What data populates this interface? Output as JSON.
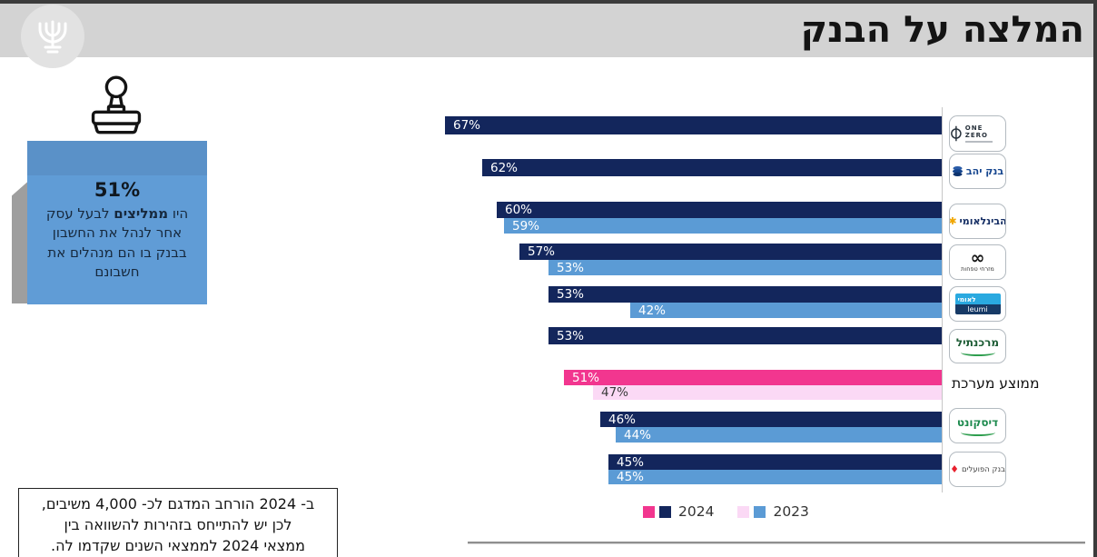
{
  "header": {
    "title": "המלצה על הבנק"
  },
  "logo": {
    "name": "Bank of Israel"
  },
  "sticky_note": {
    "headline": "51%",
    "text_prefix": "היו ",
    "text_bold": "ממליצים",
    "text_suffix": " לבעל עסק אחר לנהל את החשבון בבנק בו הם מנהלים את חשבונם"
  },
  "footnote": {
    "lines": [
      "ב- 2024 הורחב המדגם לכ- 4,000 משיבים,",
      "לכן יש להתייחס בזהירות להשוואה בין",
      "ממצאי 2024 לממצאי השנים שקדמו לה."
    ]
  },
  "chart_data": {
    "type": "bar",
    "orientation": "horizontal_rtl",
    "value_unit": "%",
    "x_max": 67,
    "colors": {
      "bank_2024": "#13265c",
      "bank_2023": "#5b9bd5",
      "avg_2024": "#f2368f",
      "avg_2023": "#fbd9f5"
    },
    "legend": [
      {
        "label": "2024",
        "swatches": [
          "#f2368f",
          "#13265c"
        ]
      },
      {
        "label": "2023",
        "swatches": [
          "#fbd9f5",
          "#5b9bd5"
        ]
      }
    ],
    "rows": [
      {
        "bank": "ONE ZERO",
        "logo": "onezero",
        "v2024": 67,
        "v2023": null,
        "is_average": false
      },
      {
        "bank": "בנק יהב",
        "logo": "yahav",
        "v2024": 62,
        "v2023": null,
        "is_average": false
      },
      {
        "bank": "הבינלאומי",
        "logo": "beinleumi",
        "v2024": 60,
        "v2023": 59,
        "is_average": false
      },
      {
        "bank": "מזרחי טפחות",
        "logo": "mizrahi",
        "v2024": 57,
        "v2023": 53,
        "is_average": false
      },
      {
        "bank": "לאומי",
        "logo": "leumi",
        "v2024": 53,
        "v2023": 42,
        "is_average": false
      },
      {
        "bank": "מרכנתיל",
        "logo": "mercantile",
        "v2024": 53,
        "v2023": null,
        "is_average": false
      },
      {
        "bank": "ממוצע מערכת",
        "logo": "average",
        "v2024": 51,
        "v2023": 47,
        "is_average": true
      },
      {
        "bank": "דיסקונט",
        "logo": "discount",
        "v2024": 46,
        "v2023": 44,
        "is_average": false
      },
      {
        "bank": "בנק הפועלים",
        "logo": "hapoalim",
        "v2024": 45,
        "v2023": 45,
        "is_average": false
      }
    ],
    "logo_texts": {
      "onezero": "ONE ZERO",
      "yahav": "בנק יהב",
      "beinleumi": "הבינלאומי",
      "mizrahi_symbol": "∞",
      "mizrahi": "מזרחי טפחות",
      "leumi_he": "לאומי",
      "leumi_en": "leumi",
      "mercantile": "מרכנתיל",
      "discount": "דיסקונט",
      "hapoalim": "בנק הפועלים",
      "average": "ממוצע מערכת"
    }
  }
}
